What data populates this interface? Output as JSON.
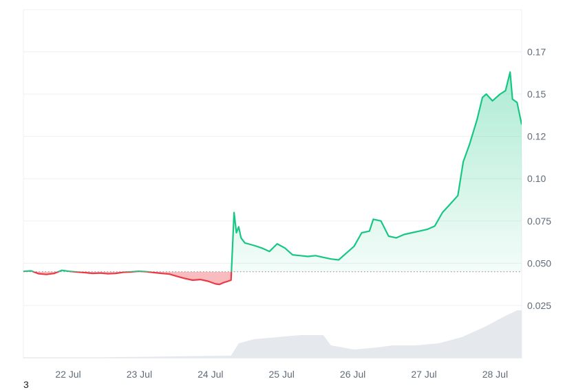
{
  "chart_data": {
    "type": "line",
    "title": "",
    "xlabel": "",
    "ylabel": "",
    "x_ticks": [
      "22 Jul",
      "23 Jul",
      "24 Jul",
      "25 Jul",
      "26 Jul",
      "27 Jul",
      "28 Jul"
    ],
    "y_ticks": [
      "0.025",
      "0.050",
      "0.075",
      "0.10",
      "0.12",
      "0.15",
      "0.17"
    ],
    "ylim": [
      0.0,
      0.2
    ],
    "baseline": 0.045,
    "series": [
      {
        "values": [
          [
            0.0,
            0.0452
          ],
          [
            0.1,
            0.0455
          ],
          [
            0.2,
            0.0438
          ],
          [
            0.3,
            0.0434
          ],
          [
            0.4,
            0.044
          ],
          [
            0.5,
            0.0458
          ],
          [
            0.6,
            0.0452
          ],
          [
            0.7,
            0.0448
          ],
          [
            0.8,
            0.0445
          ],
          [
            0.9,
            0.044
          ],
          [
            1.0,
            0.0442
          ],
          [
            1.1,
            0.0438
          ],
          [
            1.2,
            0.044
          ],
          [
            1.3,
            0.0447
          ],
          [
            1.4,
            0.0449
          ],
          [
            1.5,
            0.0453
          ],
          [
            1.6,
            0.045
          ],
          [
            1.7,
            0.0445
          ],
          [
            1.8,
            0.044
          ],
          [
            1.9,
            0.0436
          ],
          [
            2.0,
            0.0422
          ],
          [
            2.1,
            0.041
          ],
          [
            2.2,
            0.04
          ],
          [
            2.3,
            0.0404
          ],
          [
            2.4,
            0.0394
          ],
          [
            2.5,
            0.0378
          ],
          [
            2.55,
            0.0375
          ],
          [
            2.6,
            0.0385
          ],
          [
            2.65,
            0.0392
          ],
          [
            2.7,
            0.04
          ],
          [
            2.72,
            0.06
          ],
          [
            2.74,
            0.08
          ],
          [
            2.77,
            0.068
          ],
          [
            2.8,
            0.0715
          ],
          [
            2.83,
            0.065
          ],
          [
            2.88,
            0.062
          ],
          [
            3.0,
            0.0605
          ],
          [
            3.1,
            0.059
          ],
          [
            3.2,
            0.057
          ],
          [
            3.3,
            0.0615
          ],
          [
            3.4,
            0.059
          ],
          [
            3.5,
            0.055
          ],
          [
            3.6,
            0.0545
          ],
          [
            3.7,
            0.054
          ],
          [
            3.8,
            0.0545
          ],
          [
            3.9,
            0.0535
          ],
          [
            4.0,
            0.0525
          ],
          [
            4.1,
            0.052
          ],
          [
            4.2,
            0.056
          ],
          [
            4.3,
            0.06
          ],
          [
            4.4,
            0.068
          ],
          [
            4.5,
            0.069
          ],
          [
            4.55,
            0.076
          ],
          [
            4.65,
            0.075
          ],
          [
            4.75,
            0.066
          ],
          [
            4.85,
            0.065
          ],
          [
            4.95,
            0.067
          ],
          [
            5.05,
            0.068
          ],
          [
            5.15,
            0.069
          ],
          [
            5.25,
            0.07
          ],
          [
            5.35,
            0.072
          ],
          [
            5.45,
            0.08
          ],
          [
            5.55,
            0.085
          ],
          [
            5.65,
            0.09
          ],
          [
            5.72,
            0.11
          ],
          [
            5.8,
            0.12
          ],
          [
            5.9,
            0.135
          ],
          [
            5.97,
            0.148
          ],
          [
            6.02,
            0.15
          ],
          [
            6.1,
            0.146
          ],
          [
            6.2,
            0.15
          ],
          [
            6.27,
            0.152
          ],
          [
            6.33,
            0.163
          ],
          [
            6.36,
            0.147
          ],
          [
            6.42,
            0.145
          ],
          [
            6.48,
            0.132
          ]
        ]
      }
    ],
    "volume": [
      [
        0.0,
        0.0002
      ],
      [
        1.0,
        0.0002
      ],
      [
        1.5,
        0.0004
      ],
      [
        2.2,
        0.0008
      ],
      [
        2.7,
        0.001
      ],
      [
        2.8,
        0.007
      ],
      [
        3.0,
        0.009
      ],
      [
        3.3,
        0.01
      ],
      [
        3.6,
        0.011
      ],
      [
        3.9,
        0.011
      ],
      [
        4.0,
        0.006
      ],
      [
        4.3,
        0.004
      ],
      [
        4.6,
        0.005
      ],
      [
        4.8,
        0.006
      ],
      [
        5.1,
        0.006
      ],
      [
        5.4,
        0.007
      ],
      [
        5.7,
        0.01
      ],
      [
        6.0,
        0.015
      ],
      [
        6.25,
        0.02
      ],
      [
        6.42,
        0.023
      ],
      [
        6.48,
        0.023
      ]
    ],
    "colors": {
      "up": "#16c784",
      "down": "#ea3943",
      "grid": "#edf0f3",
      "axis": "#d3d8de",
      "volume": "#e5e9ee",
      "baseline": "#7d8793"
    },
    "grid": true
  },
  "corner_label": "3"
}
